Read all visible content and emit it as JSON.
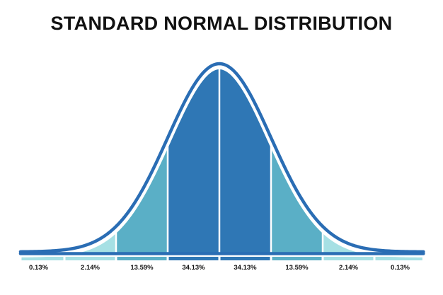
{
  "title": "STANDARD NORMAL DISTRIBUTION",
  "chart_data": {
    "type": "area",
    "title": "STANDARD NORMAL DISTRIBUTION",
    "x_range": [
      -4,
      4
    ],
    "bands": [
      {
        "from": -4,
        "to": -3,
        "label": "0.13%",
        "color": "#a6e0e4"
      },
      {
        "from": -3,
        "to": -2,
        "label": "2.14%",
        "color": "#a6e0e4"
      },
      {
        "from": -2,
        "to": -1,
        "label": "13.59%",
        "color": "#5aafc6"
      },
      {
        "from": -1,
        "to": 0,
        "label": "34.13%",
        "color": "#2f77b5"
      },
      {
        "from": 0,
        "to": 1,
        "label": "34.13%",
        "color": "#2f77b5"
      },
      {
        "from": 1,
        "to": 2,
        "label": "13.59%",
        "color": "#5aafc6"
      },
      {
        "from": 2,
        "to": 3,
        "label": "2.14%",
        "color": "#a6e0e4"
      },
      {
        "from": 3,
        "to": 4,
        "label": "0.13%",
        "color": "#a6e0e4"
      }
    ],
    "curve_color": "#2a6db4",
    "divider_color": "#ffffff"
  }
}
